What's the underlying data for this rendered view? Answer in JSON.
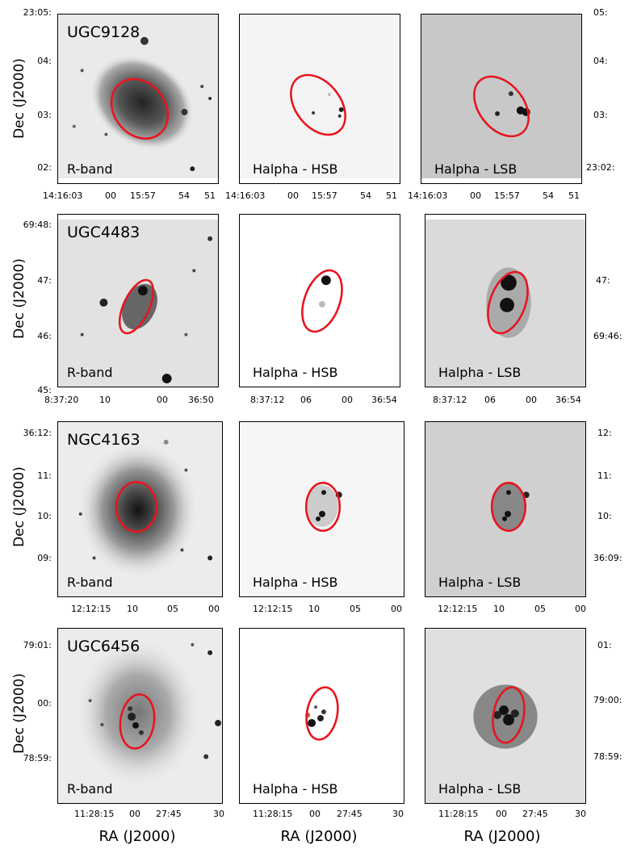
{
  "figure": {
    "y_axis_label": "Dec (J2000)",
    "x_axis_label": "RA (J2000)"
  },
  "rows": [
    {
      "galaxy": "UGC9128",
      "panels": [
        "R-band",
        "Halpha - HSB",
        "Halpha - LSB"
      ],
      "dec_left": [
        "23:05:",
        "04:",
        "03:",
        "02:"
      ],
      "dec_right": [
        "05:",
        "04:",
        "03:",
        "23:02:"
      ],
      "ra_p1": [
        "14:16:03",
        "00",
        "15:57",
        "54",
        "51"
      ],
      "ra_p2": [
        "14:16:03",
        "00",
        "15:57",
        "54",
        "51"
      ],
      "ra_p3": [
        "14:16:03",
        "00",
        "15:57",
        "54",
        "51"
      ]
    },
    {
      "galaxy": "UGC4483",
      "panels": [
        "R-band",
        "Halpha - HSB",
        "Halpha - LSB"
      ],
      "dec_left": [
        "69:48:",
        "47:",
        "46:",
        "45:"
      ],
      "dec_right": [
        "47:",
        "69:46:"
      ],
      "ra_p1": [
        "8:37:20",
        "10",
        "00",
        "36:50"
      ],
      "ra_p2": [
        "8:37:12",
        "06",
        "00",
        "36:54"
      ],
      "ra_p3": [
        "8:37:12",
        "06",
        "00",
        "36:54"
      ]
    },
    {
      "galaxy": "NGC4163",
      "panels": [
        "R-band",
        "Halpha - HSB",
        "Halpha - LSB"
      ],
      "dec_left": [
        "36:12:",
        "11:",
        "10:",
        "09:"
      ],
      "dec_right": [
        "12:",
        "11:",
        "10:",
        "36:09:"
      ],
      "ra_p1": [
        "12:12:15",
        "10",
        "05",
        "00"
      ],
      "ra_p2": [
        "12:12:15",
        "10",
        "05",
        "00"
      ],
      "ra_p3": [
        "12:12:15",
        "10",
        "05",
        "00"
      ]
    },
    {
      "galaxy": "UGC6456",
      "panels": [
        "R-band",
        "Halpha - HSB",
        "Halpha - LSB"
      ],
      "dec_left": [
        "79:01:",
        "00:",
        "78:59:"
      ],
      "dec_right": [
        "01:",
        "79:00:",
        "78:59:"
      ],
      "ra_p1": [
        "11:28:15",
        "00",
        "27:45",
        "30"
      ],
      "ra_p2": [
        "11:28:15",
        "00",
        "27:45",
        "30"
      ],
      "ra_p3": [
        "11:28:15",
        "00",
        "27:45",
        "30"
      ]
    }
  ],
  "colors": {
    "aperture": "#e8141e",
    "ink": "#000000"
  }
}
